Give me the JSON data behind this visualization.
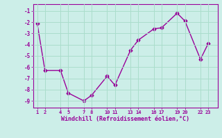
{
  "x": [
    1,
    2,
    4,
    5,
    7,
    8,
    10,
    11,
    13,
    14,
    16,
    17,
    19,
    20,
    22,
    23
  ],
  "y": [
    -2.1,
    -6.3,
    -6.3,
    -8.3,
    -9.0,
    -8.5,
    -6.8,
    -7.6,
    -4.5,
    -3.6,
    -2.6,
    -2.5,
    -1.2,
    -1.9,
    -5.3,
    -3.9
  ],
  "line_color": "#990099",
  "marker": "D",
  "marker_size": 2.5,
  "bg_color": "#cceee8",
  "grid_color": "#aaddcc",
  "xlabel": "Windchill (Refroidissement éolien,°C)",
  "tick_color": "#990099",
  "xticks": [
    1,
    2,
    4,
    5,
    7,
    8,
    10,
    11,
    13,
    14,
    16,
    17,
    19,
    20,
    22,
    23
  ],
  "xtick_labels": [
    "1",
    "2",
    "4",
    "5",
    "7",
    "8",
    "10",
    "11",
    "13",
    "14",
    "16",
    "17",
    "19",
    "20",
    "22",
    "23"
  ],
  "yticks": [
    -1,
    -2,
    -3,
    -4,
    -5,
    -6,
    -7,
    -8,
    -9
  ],
  "ylim": [
    -9.6,
    -0.4
  ],
  "xlim": [
    0.5,
    24.2
  ]
}
